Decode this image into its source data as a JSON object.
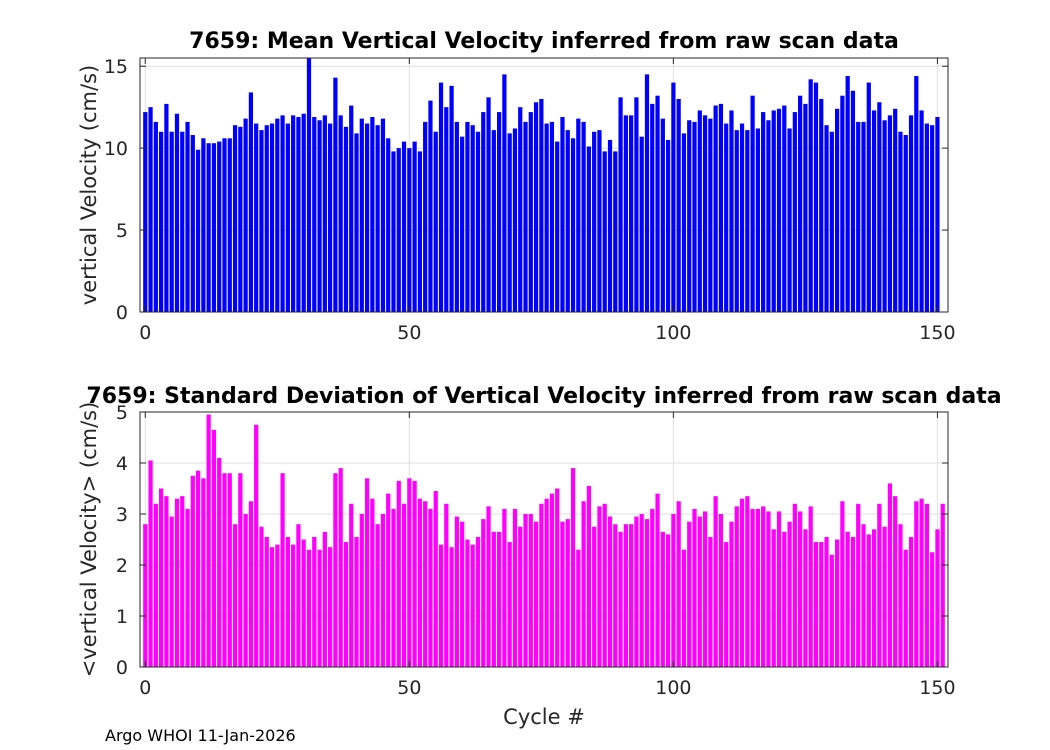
{
  "chart_data": [
    {
      "type": "bar",
      "title": "7659: Mean Vertical Velocity inferred from raw scan data",
      "xlabel": "",
      "ylabel": "vertical Velocity (cm/s)",
      "xlim": [
        -1,
        152
      ],
      "ylim": [
        0,
        15.5
      ],
      "xticks": [
        0,
        50,
        100,
        150
      ],
      "yticks": [
        0,
        5,
        10,
        15
      ],
      "grid": true,
      "color": "#0000ff",
      "x_start": 0,
      "values": [
        12.2,
        12.5,
        11.6,
        11.0,
        12.7,
        11.0,
        12.1,
        11.0,
        11.6,
        10.8,
        9.9,
        10.6,
        10.3,
        10.3,
        10.4,
        10.6,
        10.6,
        11.4,
        11.3,
        11.8,
        13.4,
        11.5,
        11.1,
        11.4,
        11.5,
        11.8,
        12.0,
        11.5,
        12.0,
        11.9,
        12.1,
        15.5,
        11.9,
        11.7,
        12.0,
        11.5,
        14.3,
        12.0,
        11.3,
        12.6,
        10.9,
        11.8,
        11.5,
        11.9,
        11.4,
        11.8,
        10.6,
        9.8,
        10.0,
        10.4,
        10.0,
        10.4,
        9.8,
        11.6,
        12.9,
        11.0,
        14.0,
        12.5,
        13.8,
        11.6,
        10.7,
        11.6,
        11.4,
        11.0,
        12.2,
        13.1,
        11.1,
        12.2,
        14.5,
        10.9,
        11.2,
        12.5,
        11.6,
        12.2,
        12.8,
        13.0,
        11.5,
        11.6,
        10.4,
        11.9,
        11.1,
        10.6,
        11.8,
        11.6,
        10.1,
        11.0,
        11.1,
        9.8,
        10.5,
        9.8,
        13.1,
        12.0,
        12.0,
        13.1,
        10.7,
        14.5,
        12.7,
        13.2,
        11.8,
        10.5,
        14.0,
        13.0,
        10.9,
        11.7,
        11.6,
        12.3,
        12.0,
        11.8,
        12.6,
        12.7,
        11.5,
        12.3,
        11.1,
        11.5,
        11.1,
        13.2,
        11.2,
        12.2,
        11.7,
        12.3,
        12.4,
        12.6,
        11.2,
        12.2,
        13.2,
        12.7,
        14.2,
        14.0,
        13.0,
        11.4,
        11.0,
        12.4,
        13.2,
        14.4,
        13.5,
        11.6,
        11.6,
        14.0,
        12.3,
        12.8,
        11.7,
        12.0,
        12.4,
        11.0,
        10.8,
        12.0,
        14.4,
        12.3,
        11.5,
        11.4,
        11.9
      ]
    },
    {
      "type": "bar",
      "title": "7659: Standard Deviation of Vertical Velocity inferred from raw scan data",
      "xlabel": "Cycle #",
      "ylabel": "<vertical Velocity> (cm/s)",
      "xlim": [
        -1,
        152
      ],
      "ylim": [
        0,
        5
      ],
      "xticks": [
        0,
        50,
        100,
        150
      ],
      "yticks": [
        0,
        1,
        2,
        3,
        4,
        5
      ],
      "grid": true,
      "color": "#ff00ff",
      "x_start": 0,
      "values": [
        2.8,
        4.05,
        3.2,
        3.5,
        3.35,
        2.95,
        3.3,
        3.35,
        3.1,
        3.75,
        3.85,
        3.7,
        4.95,
        4.65,
        4.1,
        3.8,
        3.8,
        2.8,
        3.8,
        3.0,
        3.25,
        4.75,
        2.75,
        2.55,
        2.35,
        2.4,
        3.8,
        2.55,
        2.4,
        2.8,
        2.5,
        2.3,
        2.55,
        2.3,
        2.65,
        2.35,
        3.8,
        3.9,
        2.45,
        3.2,
        2.55,
        3.0,
        3.7,
        3.3,
        2.8,
        3.0,
        3.4,
        3.1,
        3.65,
        3.2,
        3.7,
        3.65,
        3.3,
        3.25,
        3.1,
        3.45,
        2.4,
        3.2,
        2.35,
        2.95,
        2.85,
        2.5,
        2.4,
        2.55,
        2.9,
        3.15,
        2.65,
        2.65,
        3.1,
        2.45,
        3.1,
        2.75,
        3.0,
        3.0,
        2.85,
        3.2,
        3.3,
        3.4,
        3.5,
        2.85,
        2.9,
        3.9,
        2.3,
        3.25,
        3.55,
        2.75,
        3.15,
        3.2,
        2.95,
        2.8,
        2.65,
        2.8,
        2.8,
        2.95,
        3.0,
        2.9,
        3.1,
        3.4,
        2.65,
        2.6,
        3.0,
        3.25,
        2.3,
        2.85,
        3.1,
        2.95,
        3.05,
        2.55,
        3.35,
        3.0,
        2.45,
        2.85,
        3.15,
        3.3,
        3.35,
        3.1,
        3.1,
        3.15,
        3.05,
        2.7,
        3.05,
        2.65,
        2.85,
        3.2,
        3.05,
        2.7,
        3.15,
        2.45,
        2.45,
        2.55,
        2.2,
        2.5,
        3.25,
        2.65,
        2.55,
        3.2,
        2.8,
        2.6,
        2.7,
        3.2,
        2.75,
        3.6,
        3.35,
        2.8,
        2.3,
        2.55,
        3.25,
        3.3,
        3.2,
        2.25,
        2.7,
        3.2
      ]
    }
  ],
  "footer": "Argo WHOI 11-Jan-2026"
}
